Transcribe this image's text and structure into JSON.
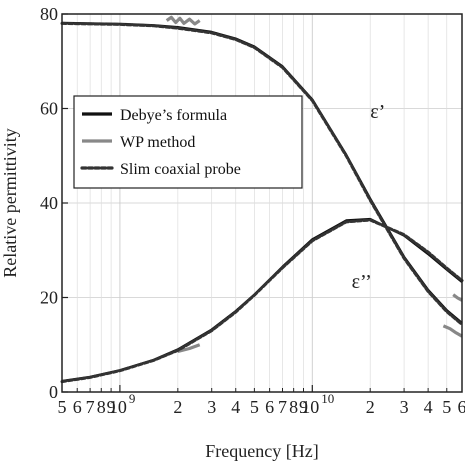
{
  "chart_data": {
    "type": "line",
    "title": "",
    "xlabel": "Frequency [Hz]",
    "ylabel": "Relative permittivity",
    "xscale": "log",
    "xlim": [
      500000000.0,
      60000000000.0
    ],
    "ylim": [
      0,
      80
    ],
    "grid": true,
    "legend_position": "center-left",
    "x_major_ticks": [
      {
        "value": 1000000000.0,
        "label": "10",
        "exponent": "9"
      },
      {
        "value": 10000000000.0,
        "label": "10",
        "exponent": "10"
      }
    ],
    "x_minor_ticks": [
      {
        "value": 500000000.0,
        "label": "5"
      },
      {
        "value": 600000000.0,
        "label": "6"
      },
      {
        "value": 700000000.0,
        "label": "7"
      },
      {
        "value": 800000000.0,
        "label": "8"
      },
      {
        "value": 900000000.0,
        "label": "9"
      },
      {
        "value": 2000000000.0,
        "label": "2"
      },
      {
        "value": 3000000000.0,
        "label": "3"
      },
      {
        "value": 4000000000.0,
        "label": "4"
      },
      {
        "value": 5000000000.0,
        "label": "5"
      },
      {
        "value": 6000000000.0,
        "label": "6"
      },
      {
        "value": 7000000000.0,
        "label": "7"
      },
      {
        "value": 8000000000.0,
        "label": "8"
      },
      {
        "value": 9000000000.0,
        "label": "9"
      },
      {
        "value": 20000000000.0,
        "label": "2"
      },
      {
        "value": 30000000000.0,
        "label": "3"
      },
      {
        "value": 40000000000.0,
        "label": "4"
      },
      {
        "value": 50000000000.0,
        "label": "5"
      },
      {
        "value": 60000000000.0,
        "label": "6"
      }
    ],
    "y_ticks": [
      {
        "value": 0,
        "label": "0"
      },
      {
        "value": 20,
        "label": "20"
      },
      {
        "value": 40,
        "label": "40"
      },
      {
        "value": 60,
        "label": "60"
      },
      {
        "value": 80,
        "label": "80"
      }
    ],
    "annotations": [
      {
        "text": "ε’",
        "x": 20000000000.0,
        "y": 58
      },
      {
        "text": "ε’’",
        "x": 16000000000.0,
        "y": 22
      }
    ],
    "series": [
      {
        "name": "Debye’s formula",
        "color": "#111111",
        "style": "solid",
        "x": [
          500000000.0,
          700000000.0,
          1000000000.0,
          1500000000.0,
          2000000000.0,
          3000000000.0,
          4000000000.0,
          5000000000.0,
          7000000000.0,
          10000000000.0,
          15000000000.0,
          20000000000.0,
          30000000000.0,
          40000000000.0,
          50000000000.0,
          60000000000.0
        ],
        "eps_real": [
          78.1,
          78.0,
          77.9,
          77.6,
          77.2,
          76.2,
          74.8,
          73.1,
          68.9,
          61.9,
          50.2,
          40.9,
          28.6,
          21.6,
          17.3,
          14.6
        ],
        "eps_imag": [
          2.3,
          3.2,
          4.6,
          6.8,
          9.0,
          13.2,
          17.1,
          20.6,
          26.5,
          32.3,
          36.3,
          36.6,
          33.1,
          29.2,
          25.9,
          23.3
        ]
      },
      {
        "name": "WP method",
        "color": "#888888",
        "style": "solid",
        "segments": [
          {
            "x": [
              1750000000.0,
              1850000000.0,
              1950000000.0,
              2050000000.0,
              2150000000.0,
              2300000000.0,
              2450000000.0,
              2600000000.0
            ],
            "y": [
              78.6,
              79.3,
              78.2,
              79.1,
              78.0,
              78.9,
              77.9,
              78.6
            ]
          },
          {
            "x": [
              2000000000.0,
              2300000000.0,
              2600000000.0
            ],
            "y": [
              8.6,
              9.2,
              10.0
            ]
          },
          {
            "x": [
              48000000000.0,
              52000000000.0,
              56000000000.0,
              60000000000.0
            ],
            "y": [
              14.0,
              13.4,
              12.5,
              11.8
            ]
          },
          {
            "x": [
              54000000000.0,
              57000000000.0,
              60000000000.0
            ],
            "y": [
              20.6,
              19.9,
              19.4
            ]
          }
        ]
      },
      {
        "name": "Slim coaxial probe",
        "color": "#333333",
        "style": "dashed",
        "x": [
          500000000.0,
          700000000.0,
          1000000000.0,
          1500000000.0,
          2000000000.0,
          3000000000.0,
          4000000000.0,
          5000000000.0,
          7000000000.0,
          10000000000.0,
          15000000000.0,
          20000000000.0,
          30000000000.0,
          40000000000.0,
          50000000000.0,
          60000000000.0
        ],
        "eps_real": [
          78.0,
          77.9,
          77.8,
          77.5,
          77.0,
          76.0,
          74.6,
          72.9,
          68.7,
          61.7,
          50.0,
          40.6,
          28.3,
          21.3,
          17.0,
          14.3
        ],
        "eps_imag": [
          2.2,
          3.1,
          4.5,
          6.7,
          8.8,
          13.0,
          16.9,
          20.5,
          26.3,
          32.0,
          36.0,
          36.4,
          33.3,
          29.6,
          26.2,
          23.6
        ]
      }
    ]
  }
}
